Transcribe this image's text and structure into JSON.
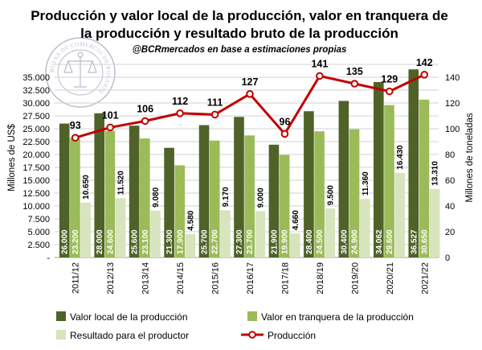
{
  "chart_data": {
    "type": "bar+line",
    "title_lines": [
      "Producción y valor local de la producción, valor en tranquera de",
      "la producción y resultado bruto de la producción"
    ],
    "subtitle": "@BCRmercados en base a estimaciones propias",
    "watermark": "BOLSA DE COMERCIO DE ROSARIO",
    "categories": [
      "2011/12",
      "2012/13",
      "2013/14",
      "2014/15",
      "2015/16",
      "2016/17",
      "2017/18",
      "2018/19",
      "2019/20",
      "2020/21",
      "2021/22"
    ],
    "y_left": {
      "label": "Millones de US$",
      "range": [
        0,
        37500
      ],
      "ticks": [
        0,
        2500,
        5000,
        7500,
        10000,
        12500,
        15000,
        17500,
        20000,
        22500,
        25000,
        27500,
        30000,
        32500,
        35000,
        37500
      ],
      "tick_labels": [
        "-",
        "2.500",
        "5.000",
        "7.500",
        "10.000",
        "12.500",
        "15.000",
        "17.500",
        "20.000",
        "22.500",
        "25.000",
        "27.500",
        "30.000",
        "32.500",
        "35.000",
        ""
      ]
    },
    "y_right": {
      "label": "Millones de toneladas",
      "range": [
        0,
        150
      ],
      "ticks": [
        0,
        20,
        40,
        60,
        80,
        100,
        120,
        140
      ],
      "tick_labels": [
        "0",
        "20",
        "40",
        "60",
        "80",
        "100",
        "120",
        "140"
      ]
    },
    "series": [
      {
        "name": "Valor local de la producción",
        "type": "bar",
        "axis": "left",
        "color": "#4f6228",
        "values": [
          26000,
          28000,
          25600,
          21300,
          25700,
          27300,
          21900,
          28400,
          30400,
          34062,
          36527
        ],
        "labels": [
          "26.000",
          "28.000",
          "25.600",
          "21.300",
          "25.700",
          "27.300",
          "21.900",
          "28.400",
          "30.400",
          "34.062",
          "36.527"
        ]
      },
      {
        "name": "Valor en tranquera de la producción",
        "type": "bar",
        "axis": "left",
        "color": "#9bbb59",
        "values": [
          23200,
          24600,
          23100,
          17900,
          22700,
          23700,
          19900,
          24500,
          24900,
          29600,
          30650
        ],
        "labels": [
          "23.200",
          "24.600",
          "23.100",
          "17.900",
          "22.700",
          "23.700",
          "19.900",
          "24.500",
          "24.900",
          "29.600",
          "30.650"
        ]
      },
      {
        "name": "Resultado para el productor",
        "type": "bar",
        "axis": "left",
        "color": "#d7e4bd",
        "values": [
          10650,
          11520,
          9080,
          4580,
          9170,
          9000,
          4660,
          9500,
          11360,
          16430,
          13310
        ],
        "labels": [
          "10.650",
          "11.520",
          "9.080",
          "4.580",
          "9.170",
          "9.000",
          "4.660",
          "9.500",
          "11.360",
          "16.430",
          "13.310"
        ]
      },
      {
        "name": "Producción",
        "type": "line",
        "axis": "right",
        "color": "#c00000",
        "values": [
          93,
          101,
          106,
          112,
          111,
          127,
          96,
          141,
          135,
          129,
          142
        ],
        "labels": [
          "93",
          "101",
          "106",
          "112",
          "111",
          "127",
          "96",
          "141",
          "135",
          "129",
          "142"
        ]
      }
    ],
    "grid": true,
    "legend_position": "bottom"
  }
}
